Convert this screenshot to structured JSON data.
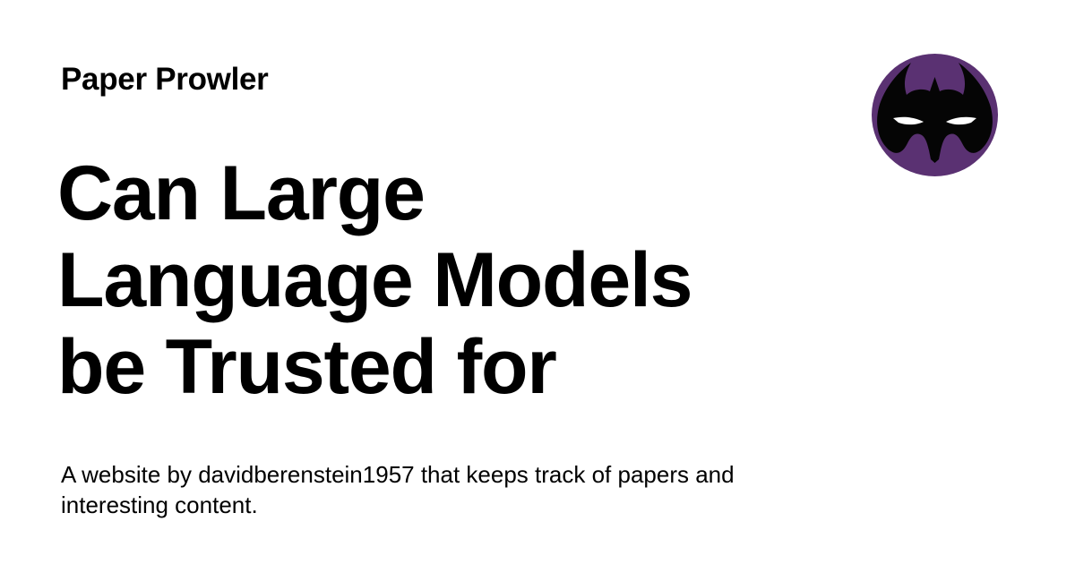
{
  "header": {
    "site_name": "Paper Prowler"
  },
  "main": {
    "headline_lines": [
      "Can Large",
      "Language Models",
      "be Trusted for"
    ],
    "description_lines": [
      "A website by davidberenstein1957 that keeps track of papers and",
      "interesting content."
    ]
  },
  "logo": {
    "icon": "masked-face-icon",
    "circle_color": "#5a3172",
    "mask_color": "#050505",
    "eye_color": "#ffffff"
  }
}
